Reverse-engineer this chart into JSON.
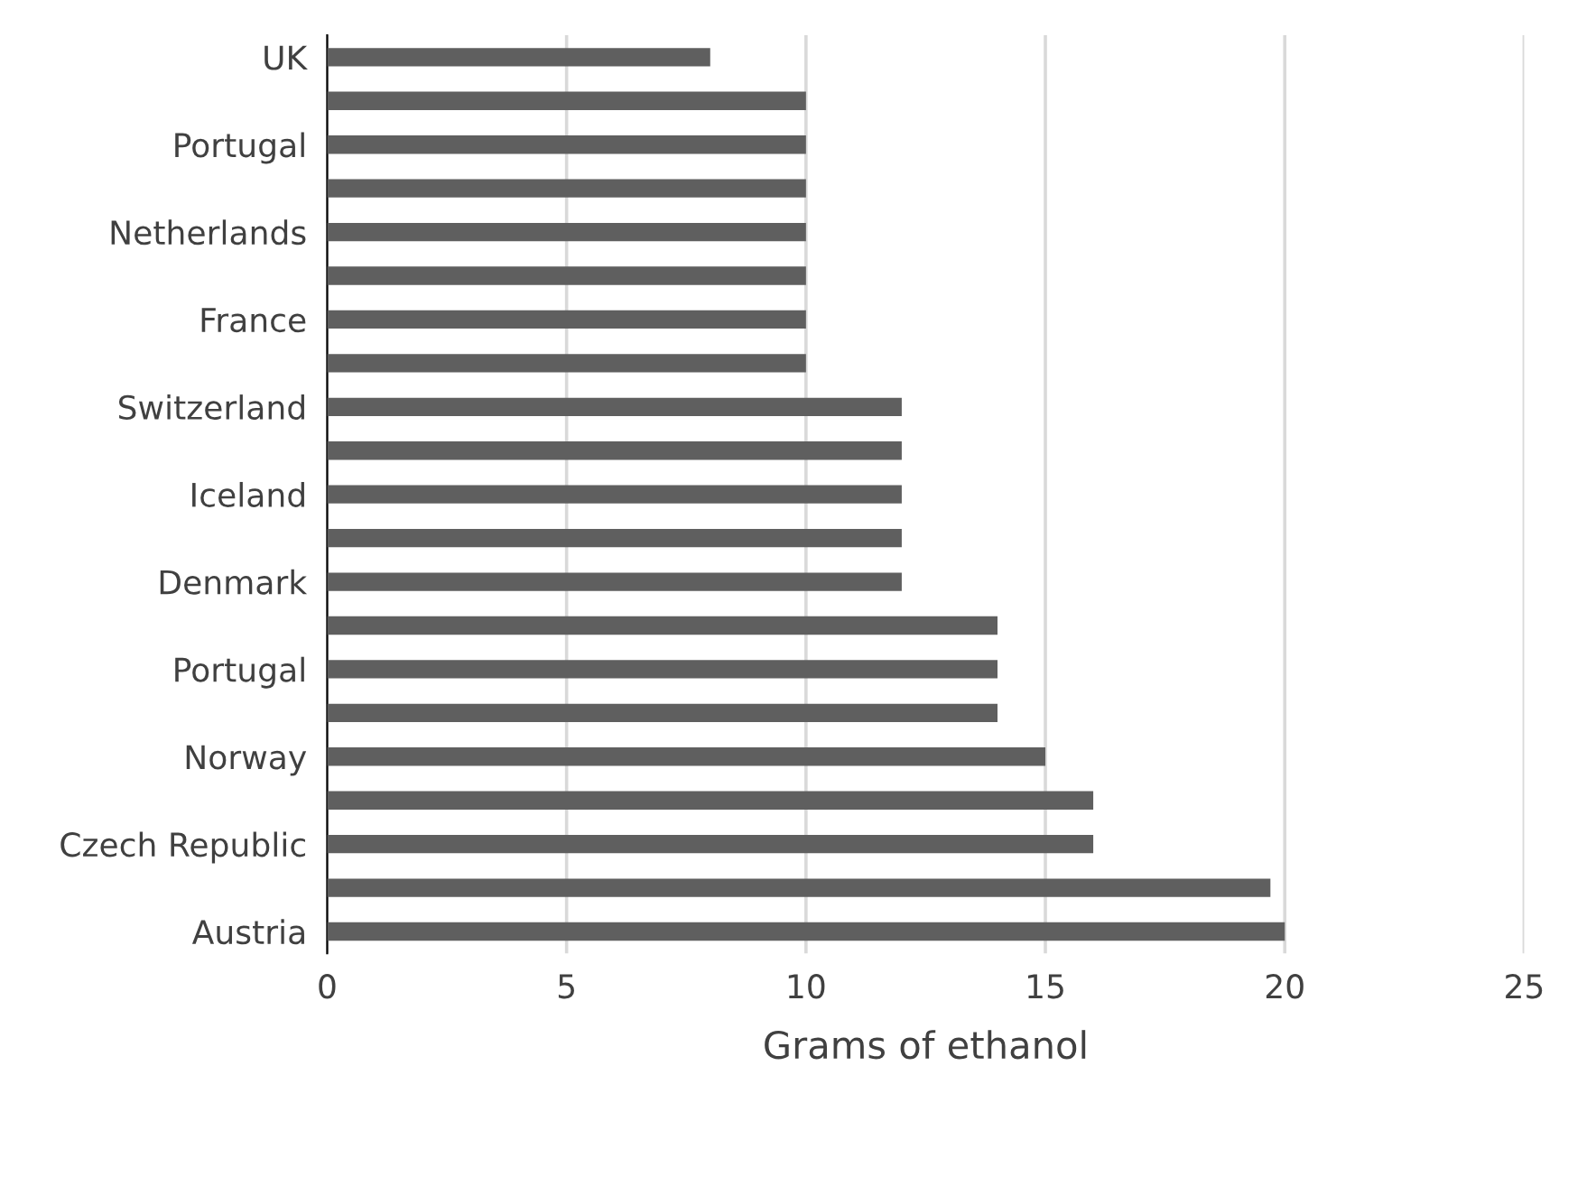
{
  "chart_data": {
    "type": "bar",
    "orientation": "horizontal",
    "xlabel": "Grams of ethanol",
    "categories": [
      "UK",
      null,
      "Portugal",
      null,
      "Netherlands",
      null,
      "France",
      null,
      "Switzerland",
      null,
      "Iceland",
      null,
      "Denmark",
      null,
      "Portugal",
      null,
      "Norway",
      null,
      "Czech Republic",
      null,
      "Austria"
    ],
    "values": [
      8,
      10,
      10,
      10,
      10,
      10,
      10,
      10,
      12,
      12,
      12,
      12,
      12,
      14,
      14,
      14,
      15,
      16,
      16,
      19.7,
      20
    ],
    "color": "#5f5f5f",
    "xlim": [
      0,
      25
    ],
    "xticks": [
      0,
      5,
      10,
      15,
      20,
      25
    ],
    "grid": "x",
    "legend": false
  }
}
